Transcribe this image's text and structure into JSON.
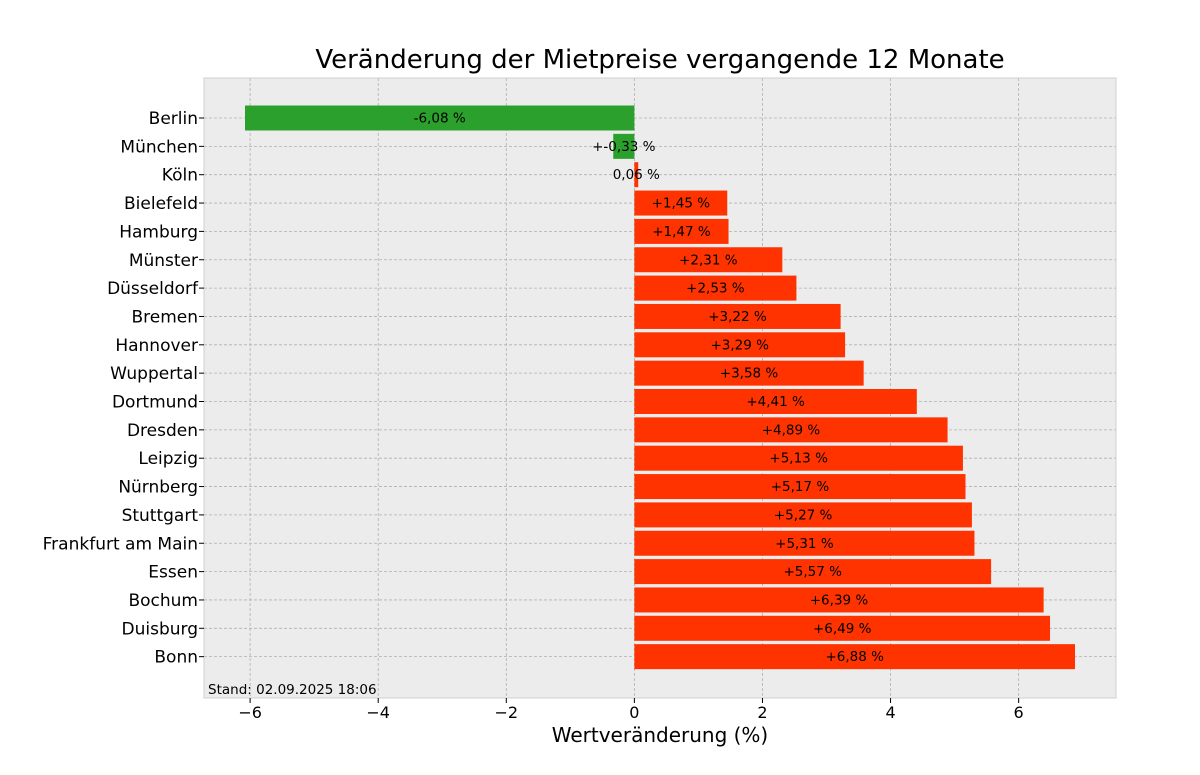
{
  "chart_data": {
    "type": "bar",
    "orientation": "horizontal",
    "title": "Veränderung der Mietpreise vergangende 12 Monate",
    "xlabel": "Wertveränderung (%)",
    "ylabel": "",
    "xlim": [
      -6.72,
      7.52
    ],
    "xticks": [
      -6,
      -4,
      -2,
      0,
      2,
      4,
      6
    ],
    "xtick_labels": [
      "−6",
      "−4",
      "−2",
      "0",
      "2",
      "4",
      "6"
    ],
    "grid": true,
    "categories": [
      "Berlin",
      "München",
      "Köln",
      "Bielefeld",
      "Hamburg",
      "Münster",
      "Düsseldorf",
      "Bremen",
      "Hannover",
      "Wuppertal",
      "Dortmund",
      "Dresden",
      "Leipzig",
      "Nürnberg",
      "Stuttgart",
      "Frankfurt am Main",
      "Essen",
      "Bochum",
      "Duisburg",
      "Bonn"
    ],
    "values": [
      -6.08,
      -0.33,
      0.06,
      1.45,
      1.47,
      2.31,
      2.53,
      3.22,
      3.29,
      3.58,
      4.41,
      4.89,
      5.13,
      5.17,
      5.27,
      5.31,
      5.57,
      6.39,
      6.49,
      6.88
    ],
    "labels": [
      "-6,08 %",
      "+-0,33 %",
      "0,06 %",
      "+1,45 %",
      "+1,47 %",
      "+2,31 %",
      "+2,53 %",
      "+3,22 %",
      "+3,29 %",
      "+3,58 %",
      "+4,41 %",
      "+4,89 %",
      "+5,13 %",
      "+5,17 %",
      "+5,27 %",
      "+5,31 %",
      "+5,57 %",
      "+6,39 %",
      "+6,49 %",
      "+6,88 %"
    ],
    "colors": {
      "negative": "#2ca02c",
      "positive": "#ff3300",
      "plot_background": "#ececec",
      "grid": "#b0b0b0"
    },
    "footnote": "Stand: 02.09.2025 18:06"
  }
}
